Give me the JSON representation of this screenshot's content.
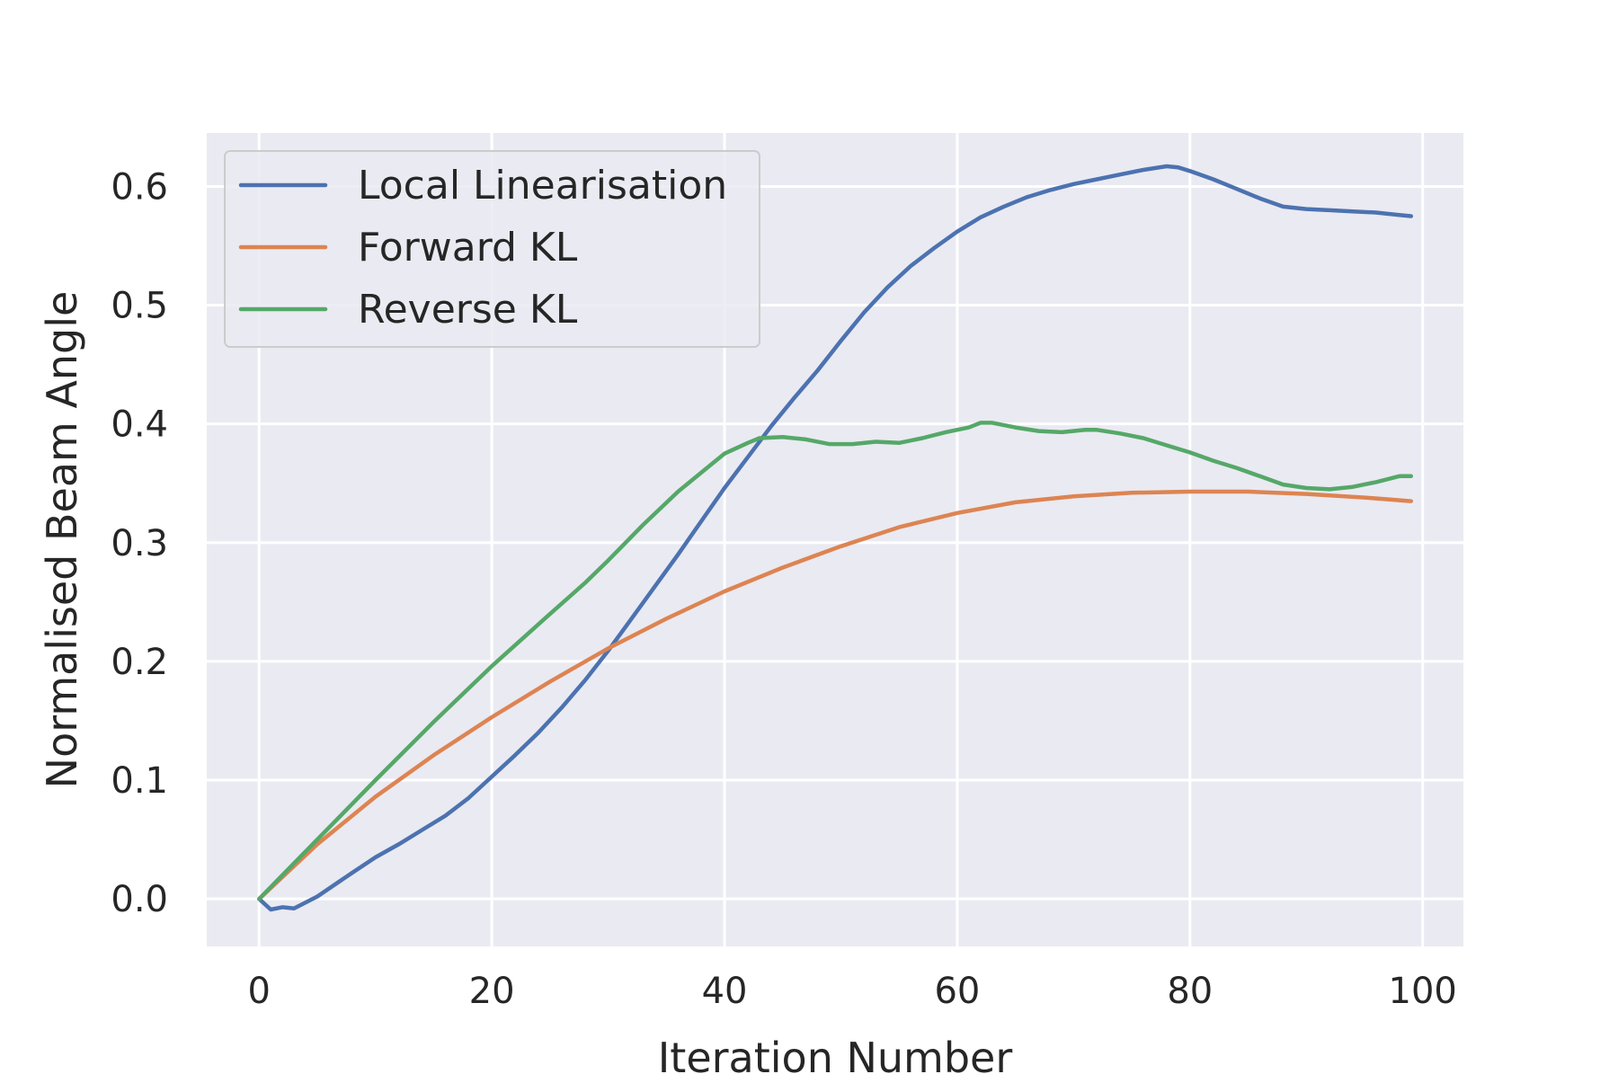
{
  "chart_data": {
    "type": "line",
    "title": "",
    "xlabel": "Iteration Number",
    "ylabel": "Normalised Beam Angle",
    "xlim": [
      -4.5,
      103.5
    ],
    "ylim": [
      -0.04,
      0.645
    ],
    "xticks": [
      0,
      20,
      40,
      60,
      80,
      100
    ],
    "xtick_labels": [
      "0",
      "20",
      "40",
      "60",
      "80",
      "100"
    ],
    "yticks": [
      0.0,
      0.1,
      0.2,
      0.3,
      0.4,
      0.5,
      0.6
    ],
    "ytick_labels": [
      "0.0",
      "0.1",
      "0.2",
      "0.3",
      "0.4",
      "0.5",
      "0.6"
    ],
    "grid": true,
    "legend_position": "upper-left",
    "background": "#eaeaf2",
    "series": [
      {
        "name": "Local Linearisation",
        "color": "#4c72b0",
        "x": [
          0,
          1,
          2,
          3,
          5,
          8,
          10,
          12,
          14,
          16,
          18,
          20,
          22,
          24,
          26,
          28,
          30,
          32,
          34,
          36,
          38,
          40,
          42,
          44,
          46,
          48,
          50,
          52,
          54,
          56,
          58,
          60,
          62,
          64,
          66,
          68,
          70,
          72,
          74,
          76,
          78,
          79,
          80,
          82,
          84,
          86,
          88,
          90,
          92,
          94,
          96,
          98,
          99
        ],
        "y": [
          0.0,
          -0.009,
          -0.007,
          -0.008,
          0.002,
          0.022,
          0.035,
          0.046,
          0.058,
          0.07,
          0.085,
          0.103,
          0.121,
          0.14,
          0.161,
          0.184,
          0.209,
          0.236,
          0.263,
          0.29,
          0.318,
          0.346,
          0.372,
          0.398,
          0.422,
          0.445,
          0.47,
          0.494,
          0.515,
          0.533,
          0.548,
          0.562,
          0.574,
          0.583,
          0.591,
          0.597,
          0.602,
          0.606,
          0.61,
          0.614,
          0.617,
          0.616,
          0.613,
          0.606,
          0.598,
          0.59,
          0.583,
          0.581,
          0.58,
          0.579,
          0.578,
          0.576,
          0.575
        ]
      },
      {
        "name": "Forward KL",
        "color": "#dd8452",
        "x": [
          0,
          5,
          10,
          15,
          20,
          25,
          30,
          35,
          40,
          45,
          50,
          55,
          60,
          65,
          70,
          75,
          80,
          85,
          90,
          95,
          99
        ],
        "y": [
          0.0,
          0.046,
          0.086,
          0.121,
          0.153,
          0.183,
          0.211,
          0.236,
          0.259,
          0.279,
          0.297,
          0.313,
          0.325,
          0.334,
          0.339,
          0.342,
          0.343,
          0.343,
          0.341,
          0.338,
          0.335
        ]
      },
      {
        "name": "Reverse KL",
        "color": "#55a868",
        "x": [
          0,
          5,
          10,
          15,
          20,
          25,
          28,
          30,
          33,
          36,
          38,
          40,
          42,
          43,
          45,
          47,
          49,
          51,
          53,
          55,
          57,
          59,
          61,
          62,
          63,
          65,
          67,
          69,
          71,
          72,
          74,
          76,
          78,
          80,
          82,
          84,
          86,
          88,
          90,
          92,
          94,
          96,
          98,
          99
        ],
        "y": [
          0.0,
          0.05,
          0.1,
          0.149,
          0.196,
          0.24,
          0.266,
          0.285,
          0.315,
          0.343,
          0.359,
          0.375,
          0.384,
          0.388,
          0.389,
          0.387,
          0.383,
          0.383,
          0.385,
          0.384,
          0.388,
          0.393,
          0.397,
          0.401,
          0.401,
          0.397,
          0.394,
          0.393,
          0.395,
          0.395,
          0.392,
          0.388,
          0.382,
          0.376,
          0.369,
          0.363,
          0.356,
          0.349,
          0.346,
          0.345,
          0.347,
          0.351,
          0.356,
          0.356
        ]
      }
    ]
  }
}
